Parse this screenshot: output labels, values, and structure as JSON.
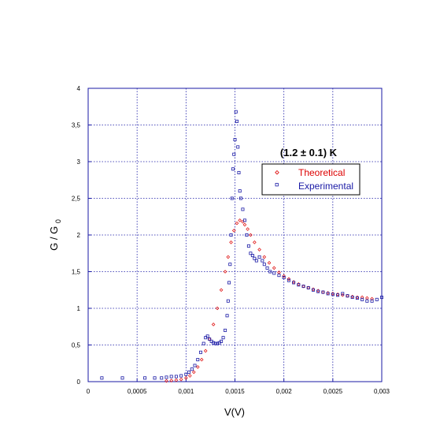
{
  "chart_data": {
    "type": "scatter",
    "title": "",
    "annotation": "(1.2 ± 0.1) K",
    "xlabel": "V(V)",
    "ylabel_main": "G / G",
    "ylabel_sub": "0",
    "xlim": [
      0,
      0.003
    ],
    "ylim": [
      0,
      4
    ],
    "grid": true,
    "legend_position": "upper-right",
    "x_ticks": [
      {
        "value": 0,
        "label": "0"
      },
      {
        "value": 0.0005,
        "label": "0,0005"
      },
      {
        "value": 0.001,
        "label": "0,001"
      },
      {
        "value": 0.0015,
        "label": "0,0015"
      },
      {
        "value": 0.002,
        "label": "0,002"
      },
      {
        "value": 0.0025,
        "label": "0,0025"
      },
      {
        "value": 0.003,
        "label": "0,003"
      }
    ],
    "y_ticks": [
      {
        "value": 0,
        "label": "0"
      },
      {
        "value": 0.5,
        "label": "0,5"
      },
      {
        "value": 1,
        "label": "1"
      },
      {
        "value": 1.5,
        "label": "1,5"
      },
      {
        "value": 2,
        "label": "2"
      },
      {
        "value": 2.5,
        "label": "2,5"
      },
      {
        "value": 3,
        "label": "3"
      },
      {
        "value": 3.5,
        "label": "3,5"
      },
      {
        "value": 4,
        "label": "4"
      }
    ],
    "series": [
      {
        "name": "Theoretical",
        "color": "#dd0000",
        "marker": "diamond",
        "points": [
          [
            0.0008,
            0.01
          ],
          [
            0.00085,
            0.015
          ],
          [
            0.0009,
            0.02
          ],
          [
            0.00095,
            0.03
          ],
          [
            0.001,
            0.05
          ],
          [
            0.00104,
            0.08
          ],
          [
            0.00108,
            0.13
          ],
          [
            0.00112,
            0.2
          ],
          [
            0.00116,
            0.3
          ],
          [
            0.0012,
            0.42
          ],
          [
            0.00124,
            0.58
          ],
          [
            0.00128,
            0.78
          ],
          [
            0.00132,
            1.0
          ],
          [
            0.00136,
            1.25
          ],
          [
            0.0014,
            1.5
          ],
          [
            0.00143,
            1.7
          ],
          [
            0.00146,
            1.9
          ],
          [
            0.00149,
            2.06
          ],
          [
            0.00152,
            2.16
          ],
          [
            0.00155,
            2.2
          ],
          [
            0.00158,
            2.18
          ],
          [
            0.0016,
            2.14
          ],
          [
            0.00163,
            2.08
          ],
          [
            0.00166,
            2.0
          ],
          [
            0.0017,
            1.9
          ],
          [
            0.00175,
            1.8
          ],
          [
            0.0018,
            1.7
          ],
          [
            0.00185,
            1.62
          ],
          [
            0.0019,
            1.55
          ],
          [
            0.00195,
            1.49
          ],
          [
            0.002,
            1.44
          ],
          [
            0.00205,
            1.4
          ],
          [
            0.0021,
            1.36
          ],
          [
            0.00215,
            1.33
          ],
          [
            0.0022,
            1.3
          ],
          [
            0.00225,
            1.28
          ],
          [
            0.0023,
            1.26
          ],
          [
            0.00235,
            1.24
          ],
          [
            0.0024,
            1.22
          ],
          [
            0.00245,
            1.21
          ],
          [
            0.0025,
            1.2
          ],
          [
            0.00255,
            1.19
          ],
          [
            0.0026,
            1.18
          ],
          [
            0.00265,
            1.17
          ],
          [
            0.0027,
            1.16
          ],
          [
            0.00275,
            1.15
          ],
          [
            0.0028,
            1.15
          ],
          [
            0.00285,
            1.14
          ],
          [
            0.0029,
            1.13
          ]
        ]
      },
      {
        "name": "Experimental",
        "color": "#1a1aa6",
        "marker": "square",
        "points": [
          [
            0.00014,
            0.05
          ],
          [
            0.00035,
            0.05
          ],
          [
            0.00058,
            0.05
          ],
          [
            0.00068,
            0.05
          ],
          [
            0.00075,
            0.05
          ],
          [
            0.0008,
            0.06
          ],
          [
            0.00085,
            0.07
          ],
          [
            0.0009,
            0.07
          ],
          [
            0.00095,
            0.08
          ],
          [
            0.001,
            0.1
          ],
          [
            0.00103,
            0.13
          ],
          [
            0.00106,
            0.17
          ],
          [
            0.00109,
            0.22
          ],
          [
            0.00112,
            0.3
          ],
          [
            0.00115,
            0.4
          ],
          [
            0.00118,
            0.52
          ],
          [
            0.0012,
            0.6
          ],
          [
            0.00122,
            0.62
          ],
          [
            0.00124,
            0.58
          ],
          [
            0.00126,
            0.55
          ],
          [
            0.00128,
            0.53
          ],
          [
            0.0013,
            0.52
          ],
          [
            0.00132,
            0.52
          ],
          [
            0.00134,
            0.53
          ],
          [
            0.00136,
            0.55
          ],
          [
            0.00138,
            0.6
          ],
          [
            0.0014,
            0.7
          ],
          [
            0.00142,
            0.9
          ],
          [
            0.00143,
            1.1
          ],
          [
            0.00144,
            1.35
          ],
          [
            0.00145,
            1.6
          ],
          [
            0.00146,
            2.0
          ],
          [
            0.00147,
            2.5
          ],
          [
            0.00148,
            2.9
          ],
          [
            0.00149,
            3.1
          ],
          [
            0.0015,
            3.3
          ],
          [
            0.00151,
            3.68
          ],
          [
            0.00152,
            3.55
          ],
          [
            0.00153,
            3.2
          ],
          [
            0.00154,
            2.85
          ],
          [
            0.00155,
            2.6
          ],
          [
            0.00156,
            2.5
          ],
          [
            0.00158,
            2.35
          ],
          [
            0.0016,
            2.2
          ],
          [
            0.00162,
            2.0
          ],
          [
            0.00164,
            1.85
          ],
          [
            0.00166,
            1.75
          ],
          [
            0.00168,
            1.72
          ],
          [
            0.0017,
            1.68
          ],
          [
            0.00172,
            1.65
          ],
          [
            0.00175,
            1.7
          ],
          [
            0.00178,
            1.65
          ],
          [
            0.0018,
            1.6
          ],
          [
            0.00183,
            1.55
          ],
          [
            0.00186,
            1.5
          ],
          [
            0.0019,
            1.48
          ],
          [
            0.00195,
            1.45
          ],
          [
            0.002,
            1.42
          ],
          [
            0.00205,
            1.38
          ],
          [
            0.0021,
            1.35
          ],
          [
            0.00215,
            1.32
          ],
          [
            0.0022,
            1.3
          ],
          [
            0.00225,
            1.28
          ],
          [
            0.0023,
            1.25
          ],
          [
            0.00235,
            1.23
          ],
          [
            0.0024,
            1.22
          ],
          [
            0.00245,
            1.2
          ],
          [
            0.0025,
            1.19
          ],
          [
            0.00255,
            1.18
          ],
          [
            0.0026,
            1.2
          ],
          [
            0.00265,
            1.17
          ],
          [
            0.0027,
            1.15
          ],
          [
            0.00275,
            1.14
          ],
          [
            0.0028,
            1.12
          ],
          [
            0.00285,
            1.1
          ],
          [
            0.0029,
            1.1
          ],
          [
            0.00295,
            1.12
          ],
          [
            0.003,
            1.15
          ]
        ]
      }
    ]
  }
}
